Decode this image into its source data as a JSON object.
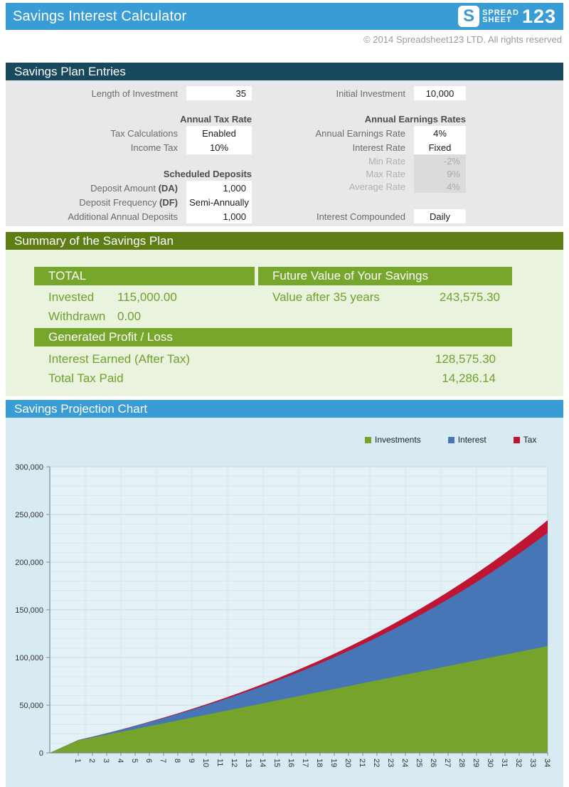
{
  "header": {
    "title": "Savings Interest Calculator",
    "logo": {
      "s": "S",
      "line1": "SPREAD",
      "line2": "SHEET",
      "number": "123"
    },
    "copyright": "© 2014 Spreadsheet123 LTD. All rights reserved"
  },
  "entries": {
    "section_title": "Savings Plan Entries",
    "left": {
      "length_label": "Length of Investment",
      "length_value": "35",
      "tax_header": "Annual Tax Rate",
      "tax_calc_label": "Tax Calculations",
      "tax_calc_value": "Enabled",
      "income_tax_label": "Income Tax",
      "income_tax_value": "10%",
      "deposits_header": "Scheduled Deposits",
      "deposit_amount_label": "Deposit Amount ",
      "deposit_amount_suffix": "(DA)",
      "deposit_amount_value": "1,000",
      "deposit_freq_label": "Deposit Frequency ",
      "deposit_freq_suffix": "(DF)",
      "deposit_freq_value": "Semi-Annually",
      "additional_label": "Additional Annual Deposits",
      "additional_value": "1,000"
    },
    "right": {
      "initial_label": "Initial Investment",
      "initial_value": "10,000",
      "earnings_header": "Annual Earnings Rates",
      "earnings_rate_label": "Annual Earnings Rate",
      "earnings_rate_value": "4%",
      "interest_rate_label": "Interest Rate",
      "interest_rate_value": "Fixed",
      "min_rate_label": "Min Rate",
      "min_rate_value": "-2%",
      "max_rate_label": "Max Rate",
      "max_rate_value": "9%",
      "avg_rate_label": "Average Rate",
      "avg_rate_value": "4%",
      "compound_label": "Interest Compounded",
      "compound_value": "Daily"
    }
  },
  "summary": {
    "section_title": "Summary of the Savings Plan",
    "total_header": "TOTAL",
    "invested_label": "Invested",
    "invested_value": "115,000.00",
    "withdrawn_label": "Withdrawn",
    "withdrawn_value": "0.00",
    "fv_header": "Future Value of Your Savings",
    "fv_label": "Value after 35 years",
    "fv_value": "243,575.30",
    "profit_header": "Generated Profit / Loss",
    "interest_earned_label": "Interest Earned (After Tax)",
    "interest_earned_value": "128,575.30",
    "tax_paid_label": "Total Tax Paid",
    "tax_paid_value": "14,286.14"
  },
  "chart": {
    "section_title": "Savings Projection Chart"
  },
  "chart_data": {
    "type": "area",
    "stacked": true,
    "leading_zero_point": true,
    "categories": [
      1,
      2,
      3,
      4,
      5,
      6,
      7,
      8,
      9,
      10,
      11,
      12,
      13,
      14,
      15,
      16,
      17,
      18,
      19,
      20,
      21,
      22,
      23,
      24,
      25,
      26,
      27,
      28,
      29,
      30,
      31,
      32,
      33,
      34
    ],
    "series": [
      {
        "name": "Investments",
        "color": "#76A32B",
        "values": [
          13000,
          16000,
          19000,
          22000,
          25000,
          28000,
          31000,
          34000,
          37000,
          40000,
          43000,
          46000,
          49000,
          52000,
          55000,
          58000,
          61000,
          64000,
          67000,
          70000,
          73000,
          76000,
          79000,
          82000,
          85000,
          88000,
          91000,
          94000,
          97000,
          100000,
          103000,
          106000,
          109000,
          112000
        ]
      },
      {
        "name": "Interest",
        "color": "#4676B5",
        "values": [
          367,
          858,
          1477,
          2229,
          3119,
          4151,
          5332,
          6666,
          8159,
          9817,
          11646,
          13653,
          15843,
          18224,
          20803,
          23586,
          26582,
          29798,
          33242,
          36923,
          40849,
          45030,
          49474,
          54192,
          59193,
          64487,
          70087,
          76002,
          82244,
          88826,
          95760,
          103058,
          110735,
          118804
        ]
      },
      {
        "name": "Tax",
        "color": "#BF1432",
        "values": [
          41,
          95,
          164,
          248,
          347,
          461,
          592,
          741,
          907,
          1091,
          1294,
          1517,
          1761,
          2025,
          2312,
          2621,
          2954,
          3311,
          3694,
          4103,
          4539,
          5004,
          5497,
          6022,
          6577,
          7166,
          7788,
          8445,
          9139,
          9870,
          10640,
          11451,
          12304,
          13201
        ]
      }
    ],
    "ylim": [
      0,
      300000
    ],
    "y_major": 50000,
    "y_minor": 10000,
    "y_tick_labels": [
      "0",
      "50,000",
      "100,000",
      "150,000",
      "200,000",
      "250,000",
      "300,000"
    ],
    "grid": true,
    "legend_position": "top-right",
    "title": "",
    "xlabel": "",
    "ylabel": ""
  },
  "colors": {
    "teal": "#3A9CD5",
    "navy": "#17485E",
    "olive": "#5E7D15",
    "green_bar": "#76A72C",
    "green_text": "#6FA12C",
    "panel_gray": "#E8E8E8",
    "panel_green": "#EAF3DE",
    "panel_blue": "#D8EAF2",
    "plot_bg": "#E4F1F6"
  }
}
